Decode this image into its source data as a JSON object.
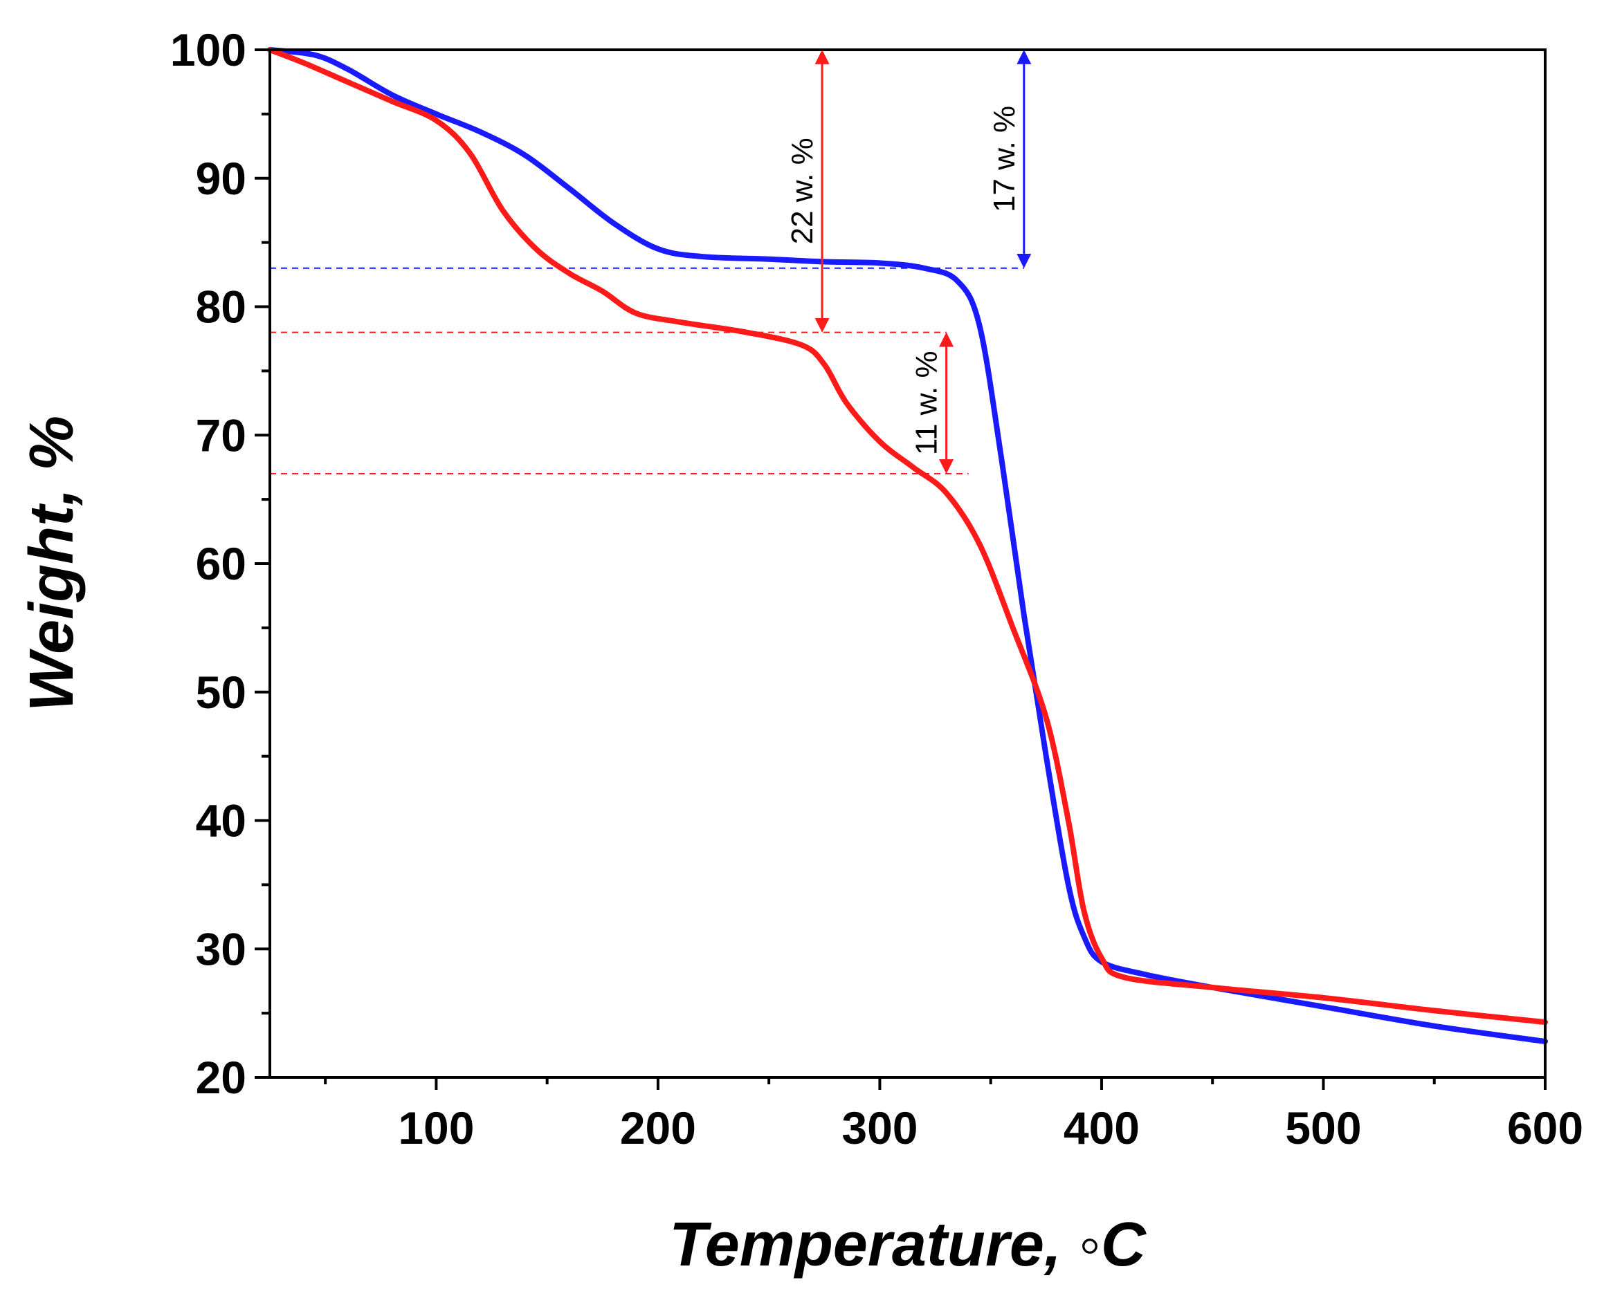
{
  "chart_data": {
    "type": "line",
    "title": "",
    "xlabel": "Temperature, ◦C",
    "ylabel": "Weight, %",
    "xlim": [
      25,
      600
    ],
    "ylim": [
      20,
      100
    ],
    "x_ticks": [
      100,
      200,
      300,
      400,
      500,
      600
    ],
    "y_ticks": [
      20,
      30,
      40,
      50,
      60,
      70,
      80,
      90,
      100
    ],
    "grid": false,
    "legend": "none",
    "colors": {
      "blue": "#1a1aff",
      "red": "#ff1a1a",
      "axis": "#000000"
    },
    "series": [
      {
        "name": "blue-curve",
        "color": "#1a1aff",
        "x": [
          25,
          45,
          60,
          80,
          100,
          120,
          140,
          160,
          180,
          200,
          220,
          250,
          275,
          300,
          320,
          335,
          345,
          355,
          365,
          375,
          385,
          392,
          400,
          420,
          450,
          500,
          550,
          600
        ],
        "y": [
          100,
          99.6,
          98.5,
          96.5,
          95,
          93.6,
          91.8,
          89.2,
          86.5,
          84.5,
          83.9,
          83.7,
          83.5,
          83.4,
          83,
          82,
          78.5,
          68,
          56,
          45,
          35,
          31,
          29,
          28,
          27,
          25.5,
          24,
          22.8
        ]
      },
      {
        "name": "red-curve",
        "color": "#ff1a1a",
        "x": [
          25,
          40,
          60,
          80,
          100,
          115,
          130,
          145,
          160,
          175,
          190,
          210,
          240,
          265,
          275,
          285,
          300,
          315,
          330,
          345,
          360,
          375,
          385,
          392,
          400,
          410,
          450,
          500,
          550,
          600
        ],
        "y": [
          100,
          99,
          97.5,
          96,
          94.5,
          92,
          87.5,
          84.5,
          82.6,
          81.2,
          79.5,
          78.8,
          78,
          77,
          75.5,
          72.5,
          69.5,
          67.5,
          65.5,
          61.5,
          55,
          48,
          40,
          33,
          29.3,
          27.8,
          27,
          26.2,
          25.2,
          24.3
        ]
      }
    ],
    "reference_lines": [
      {
        "y": 83,
        "x_start": 25,
        "x_end": 365,
        "color": "#1a1aff"
      },
      {
        "y": 78,
        "x_start": 25,
        "x_end": 330,
        "color": "#ff1a1a"
      },
      {
        "y": 67,
        "x_start": 25,
        "x_end": 340,
        "color": "#ff1a1a"
      }
    ],
    "annotations": [
      {
        "label": "22 w. %",
        "x": 274,
        "y_from": 100,
        "y_to": 78,
        "color": "#ff1a1a"
      },
      {
        "label": "17 w. %",
        "x": 365,
        "y_from": 100,
        "y_to": 83,
        "color": "#1a1aff"
      },
      {
        "label": "11 w. %",
        "x": 330,
        "y_from": 78,
        "y_to": 67,
        "color": "#ff1a1a"
      }
    ]
  }
}
